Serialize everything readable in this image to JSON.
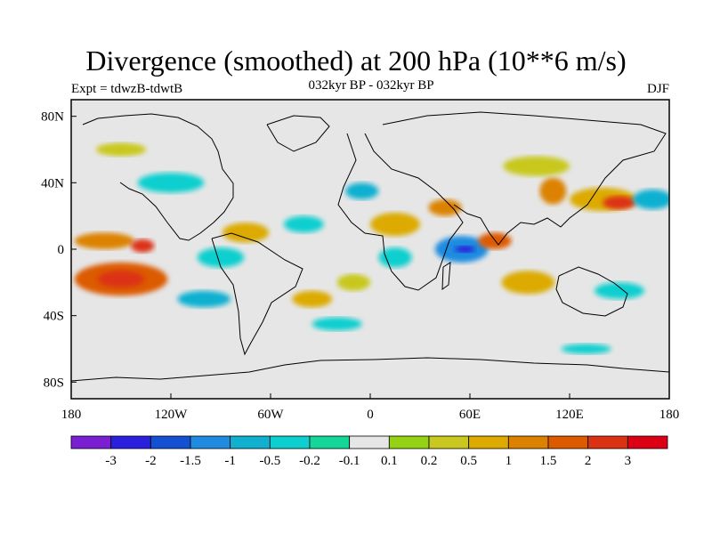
{
  "header": {
    "title": "Divergence (smoothed) at 200 hPa (10**6 m/s)",
    "experiment": "Expt = tdwzB-tdwtB",
    "period": "032kyr BP - 032kyr BP",
    "season": "DJF"
  },
  "map": {
    "projection": "cylindrical equidistant",
    "lon_range": [
      -180,
      180
    ],
    "lat_range": [
      -90,
      90
    ],
    "lat_ticks": [
      {
        "value": 80,
        "label": "80N"
      },
      {
        "value": 40,
        "label": "40N"
      },
      {
        "value": 0,
        "label": "0"
      },
      {
        "value": -40,
        "label": "40S"
      },
      {
        "value": -80,
        "label": "80S"
      }
    ],
    "lon_ticks": [
      {
        "value": -180,
        "label": "180"
      },
      {
        "value": -120,
        "label": "120W"
      },
      {
        "value": -60,
        "label": "60W"
      },
      {
        "value": 0,
        "label": "0"
      },
      {
        "value": 60,
        "label": "60E"
      },
      {
        "value": 120,
        "label": "120E"
      },
      {
        "value": 180,
        "label": "180"
      }
    ],
    "background_color": "#e6e6e6",
    "field_blobs": [
      {
        "lon": -150,
        "lat": -18,
        "rlon": 28,
        "rlat": 10,
        "level": 5
      },
      {
        "lon": -150,
        "lat": -18,
        "rlon": 14,
        "rlat": 5,
        "level": 6
      },
      {
        "lon": -160,
        "lat": 5,
        "rlon": 18,
        "rlat": 5,
        "level": 4
      },
      {
        "lon": -137,
        "lat": 2,
        "rlon": 7,
        "rlat": 4,
        "level": 6
      },
      {
        "lon": -90,
        "lat": -5,
        "rlon": 14,
        "rlat": 6,
        "level": -2
      },
      {
        "lon": -100,
        "lat": -30,
        "rlon": 16,
        "rlat": 5,
        "level": -3
      },
      {
        "lon": -75,
        "lat": 10,
        "rlon": 14,
        "rlat": 6,
        "level": 3
      },
      {
        "lon": -40,
        "lat": 15,
        "rlon": 12,
        "rlat": 5,
        "level": -2
      },
      {
        "lon": -35,
        "lat": -30,
        "rlon": 12,
        "rlat": 5,
        "level": 3
      },
      {
        "lon": -10,
        "lat": -20,
        "rlon": 10,
        "rlat": 5,
        "level": 2
      },
      {
        "lon": -5,
        "lat": 35,
        "rlon": 10,
        "rlat": 5,
        "level": -3
      },
      {
        "lon": 15,
        "lat": 15,
        "rlon": 15,
        "rlat": 7,
        "level": 3
      },
      {
        "lon": 15,
        "lat": -5,
        "rlon": 10,
        "rlat": 6,
        "level": -2
      },
      {
        "lon": 45,
        "lat": 25,
        "rlon": 10,
        "rlat": 5,
        "level": 4
      },
      {
        "lon": 55,
        "lat": 0,
        "rlon": 16,
        "rlat": 8,
        "level": -4
      },
      {
        "lon": 57,
        "lat": 0,
        "rlon": 6,
        "rlat": 2,
        "level": -6
      },
      {
        "lon": 75,
        "lat": 5,
        "rlon": 10,
        "rlat": 5,
        "level": 5
      },
      {
        "lon": 95,
        "lat": -20,
        "rlon": 16,
        "rlat": 7,
        "level": 3
      },
      {
        "lon": 110,
        "lat": 35,
        "rlon": 8,
        "rlat": 8,
        "level": 4
      },
      {
        "lon": 140,
        "lat": 30,
        "rlon": 20,
        "rlat": 7,
        "level": 3
      },
      {
        "lon": 150,
        "lat": 28,
        "rlon": 10,
        "rlat": 4,
        "level": 6
      },
      {
        "lon": 170,
        "lat": 30,
        "rlon": 12,
        "rlat": 6,
        "level": -3
      },
      {
        "lon": 150,
        "lat": -25,
        "rlon": 15,
        "rlat": 5,
        "level": -2
      },
      {
        "lon": -120,
        "lat": 40,
        "rlon": 20,
        "rlat": 6,
        "level": -2
      },
      {
        "lon": 100,
        "lat": 50,
        "rlon": 20,
        "rlat": 6,
        "level": 2
      },
      {
        "lon": -20,
        "lat": -45,
        "rlon": 15,
        "rlat": 4,
        "level": -2
      },
      {
        "lon": 130,
        "lat": -60,
        "rlon": 15,
        "rlat": 3,
        "level": -2
      },
      {
        "lon": -150,
        "lat": 60,
        "rlon": 15,
        "rlat": 4,
        "level": 2
      }
    ]
  },
  "colorbar": {
    "levels": [
      "-3",
      "-2",
      "-1.5",
      "-1",
      "-0.5",
      "-0.2",
      "-0.1",
      "0.1",
      "0.2",
      "0.5",
      "1",
      "1.5",
      "2",
      "3"
    ],
    "colors": [
      "#7a1fd2",
      "#2a1fdc",
      "#1450d2",
      "#1e8be0",
      "#11b0d0",
      "#0ecfcf",
      "#13d698",
      "#e6e6e6",
      "#96d214",
      "#c8c81e",
      "#dcaa00",
      "#dc8200",
      "#dc5a00",
      "#dc3214",
      "#dc0014"
    ]
  }
}
